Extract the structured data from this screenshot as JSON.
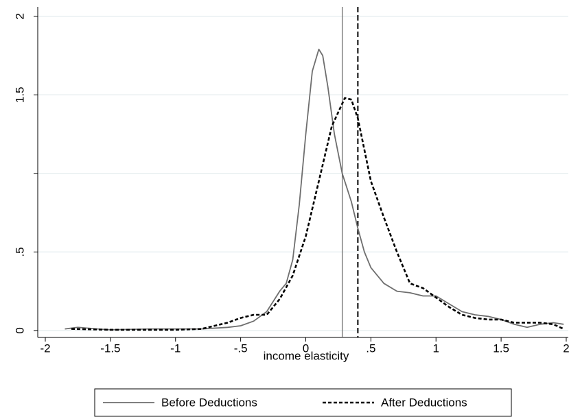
{
  "chart_data": {
    "type": "line",
    "xlabel": "income elasticity",
    "xlim": [
      -2.058,
      2.016
    ],
    "ylim": [
      -0.044,
      2.06
    ],
    "xticks": [
      -2,
      -1.5,
      -1,
      {
        "value": -0.5,
        "label": "-.5"
      },
      0,
      {
        "value": 0.5,
        "label": ".5"
      },
      1,
      1.5,
      2
    ],
    "yticks": [
      0,
      {
        "value": 0.5,
        "label": ".5"
      },
      {
        "value": 1,
        "label": null
      },
      1.5,
      2
    ],
    "grid": true,
    "legend": "bottom",
    "series": [
      {
        "name": "Before Deductions",
        "color": "#6e6e6e",
        "dash": "solid",
        "x": [
          -1.85,
          -1.75,
          -1.6,
          -1.5,
          -1.2,
          -1,
          -0.8,
          -0.6,
          -0.5,
          -0.4,
          -0.3,
          -0.2,
          -0.15,
          -0.1,
          -0.05,
          0,
          0.05,
          0.1,
          0.13,
          0.17,
          0.22,
          0.28,
          0.35,
          0.4,
          0.45,
          0.5,
          0.6,
          0.7,
          0.8,
          0.9,
          1.0,
          1.1,
          1.2,
          1.3,
          1.4,
          1.5,
          1.6,
          1.7,
          1.8,
          1.9,
          1.98
        ],
        "values": [
          0.01,
          0.02,
          0.01,
          0.005,
          0.01,
          0.01,
          0.01,
          0.02,
          0.03,
          0.06,
          0.12,
          0.25,
          0.3,
          0.45,
          0.8,
          1.25,
          1.65,
          1.79,
          1.75,
          1.55,
          1.25,
          1.0,
          0.82,
          0.65,
          0.5,
          0.4,
          0.3,
          0.25,
          0.24,
          0.22,
          0.22,
          0.17,
          0.12,
          0.1,
          0.09,
          0.07,
          0.04,
          0.02,
          0.04,
          0.05,
          0.04
        ]
      },
      {
        "name": "After Deductions",
        "color": "#000000",
        "dash": "dashed",
        "x": [
          -1.8,
          -1.5,
          -1.2,
          -1,
          -0.8,
          -0.7,
          -0.6,
          -0.5,
          -0.4,
          -0.3,
          -0.2,
          -0.1,
          0,
          0.1,
          0.2,
          0.3,
          0.35,
          0.4,
          0.45,
          0.5,
          0.6,
          0.7,
          0.8,
          0.9,
          1.0,
          1.1,
          1.2,
          1.3,
          1.4,
          1.5,
          1.6,
          1.7,
          1.8,
          1.9,
          1.98
        ],
        "values": [
          0.01,
          0.005,
          0.005,
          0.005,
          0.01,
          0.03,
          0.05,
          0.08,
          0.1,
          0.1,
          0.2,
          0.35,
          0.6,
          0.95,
          1.3,
          1.48,
          1.47,
          1.35,
          1.15,
          0.95,
          0.72,
          0.5,
          0.3,
          0.27,
          0.21,
          0.15,
          0.1,
          0.08,
          0.07,
          0.07,
          0.05,
          0.05,
          0.05,
          0.04,
          0.01
        ]
      }
    ],
    "vlines": [
      {
        "x": 0.28,
        "color": "#6e6e6e",
        "dash": "solid"
      },
      {
        "x": 0.4,
        "color": "#000000",
        "dash": "dashed"
      }
    ]
  }
}
